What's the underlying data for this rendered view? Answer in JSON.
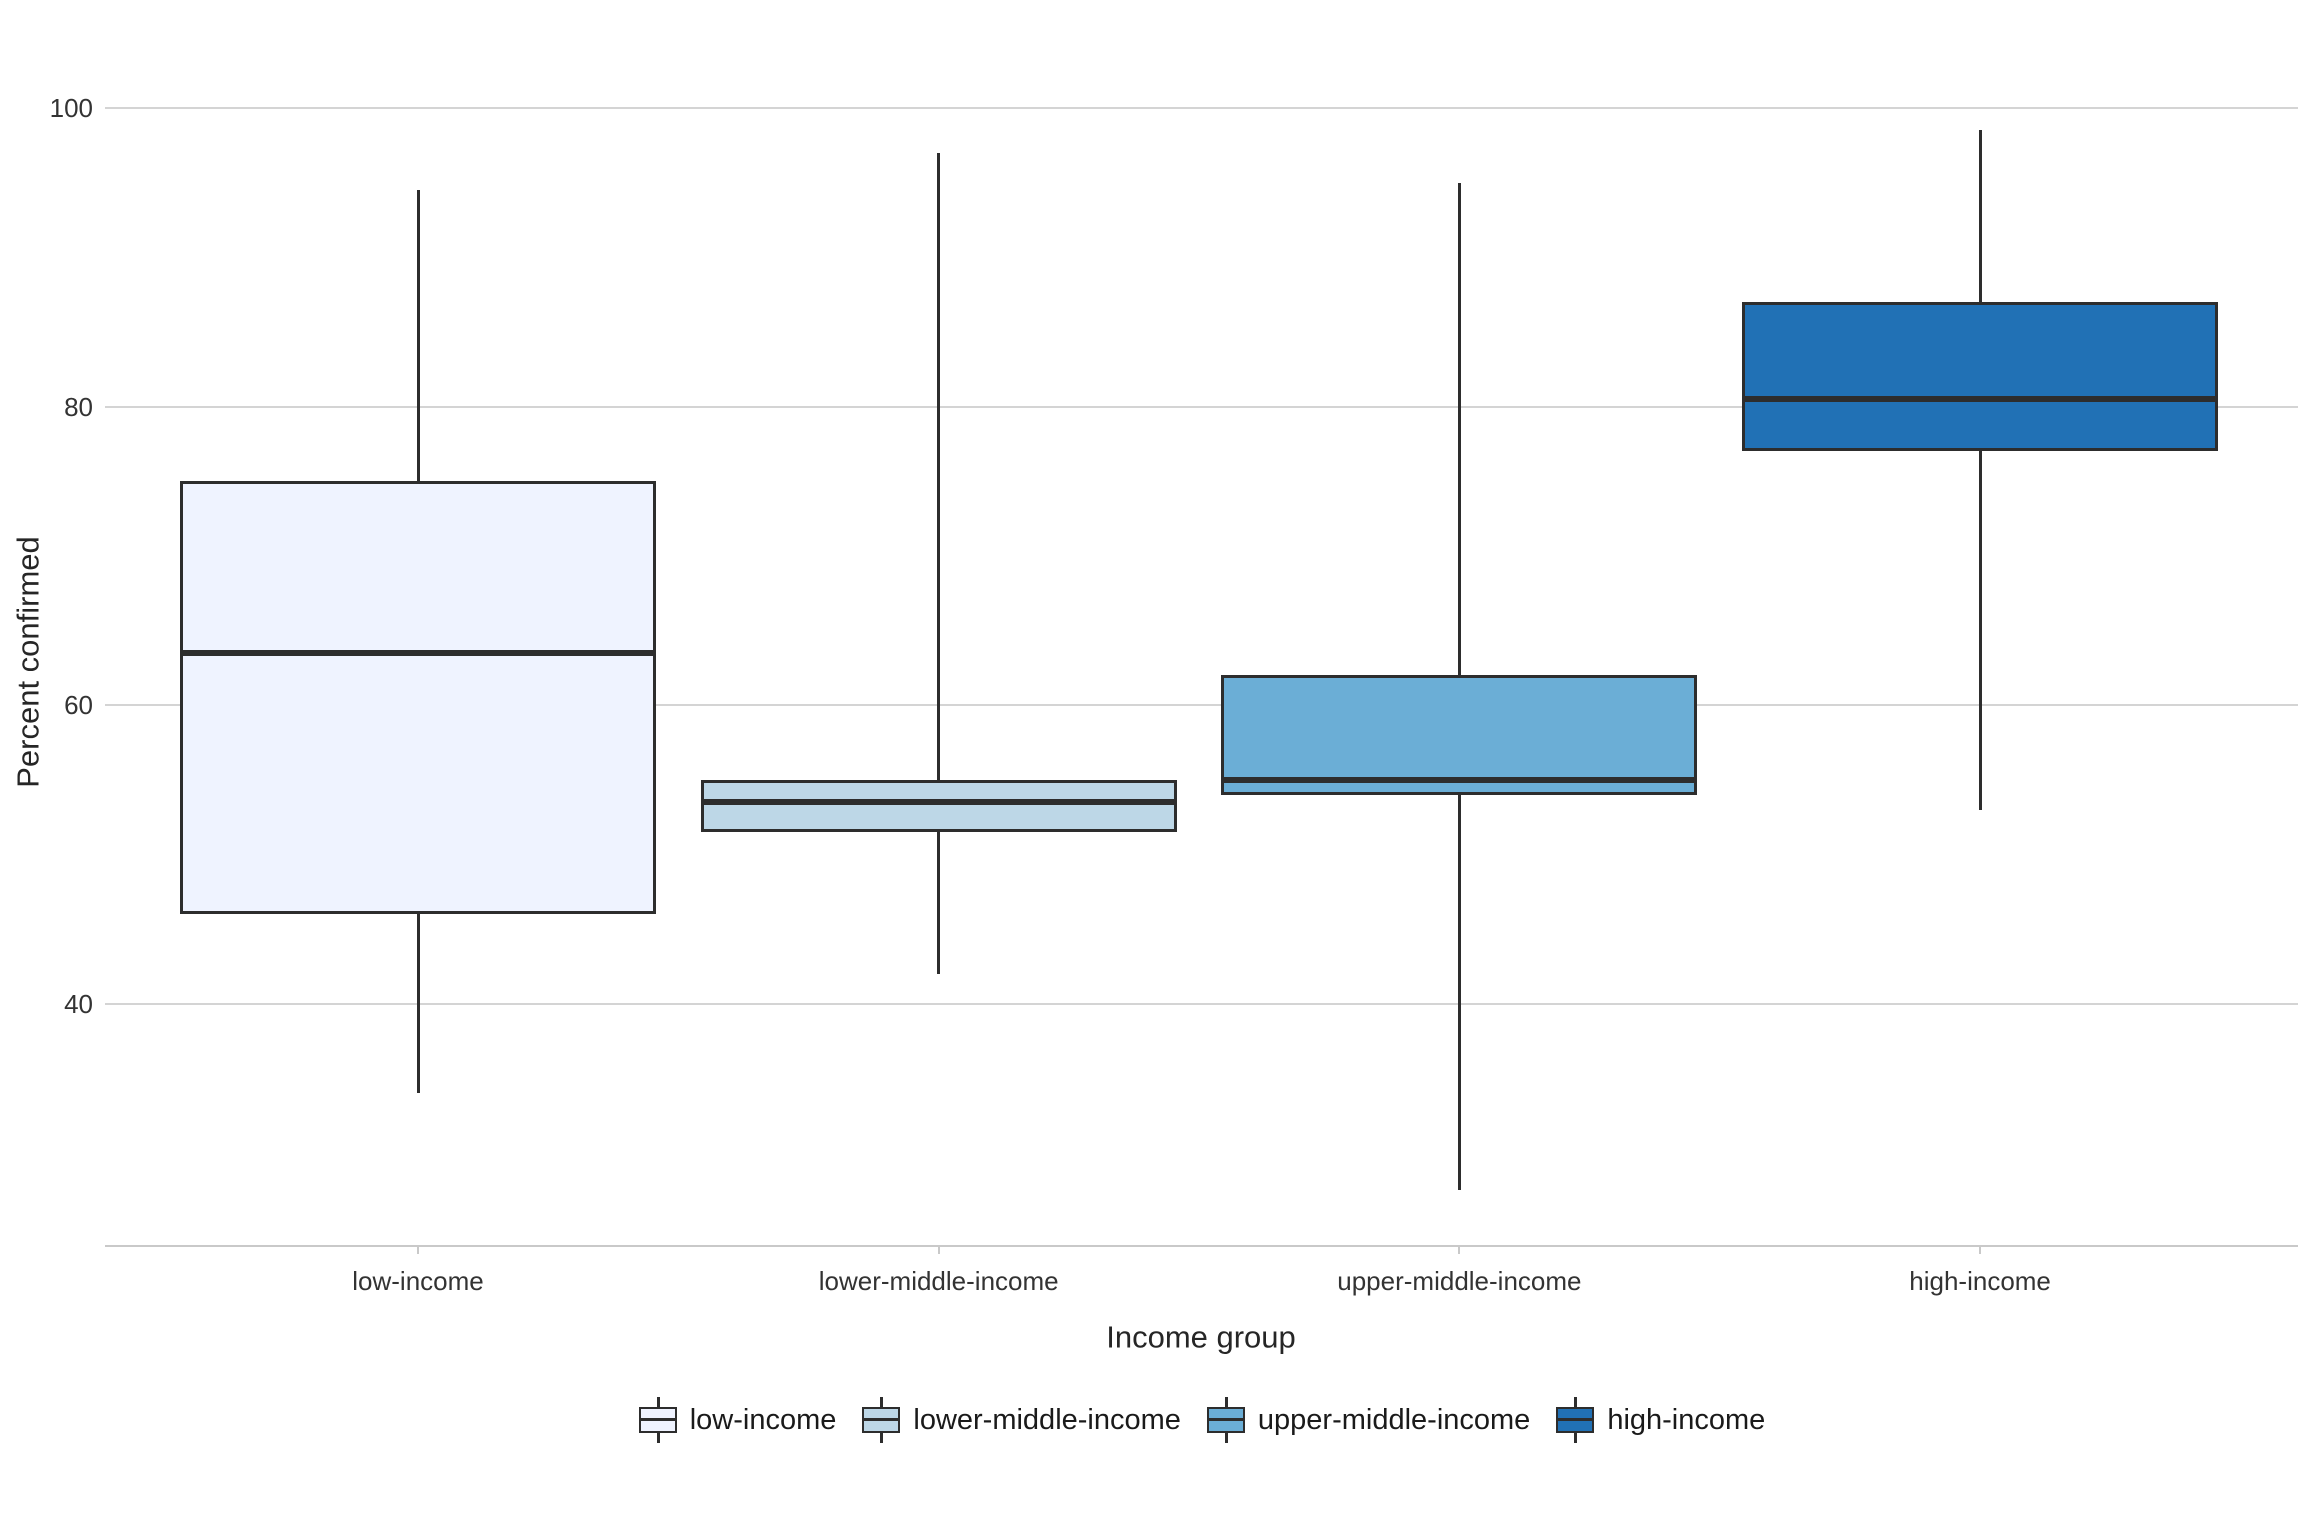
{
  "chart_data": {
    "type": "box",
    "title": "",
    "xlabel": "Income group",
    "ylabel": "Percent confirmed",
    "categories": [
      "low-income",
      "lower-middle-income",
      "upper-middle-income",
      "high-income"
    ],
    "y_ticks": [
      100,
      80,
      60,
      40
    ],
    "ylim": [
      24,
      104
    ],
    "grid": "horizontal-only",
    "legend_position": "bottom-center",
    "series": [
      {
        "name": "low-income",
        "color": "#EFF3FF",
        "whisker_low": 34,
        "q1": 46,
        "median": 63.5,
        "q3": 75,
        "whisker_high": 94.5
      },
      {
        "name": "lower-middle-income",
        "color": "#BDD7E7",
        "whisker_low": 42,
        "q1": 51.5,
        "median": 53.5,
        "q3": 55,
        "whisker_high": 97
      },
      {
        "name": "upper-middle-income",
        "color": "#6BAED6",
        "whisker_low": 27.5,
        "q1": 54,
        "median": 55,
        "q3": 62,
        "whisker_high": 95
      },
      {
        "name": "high-income",
        "color": "#2171B5",
        "whisker_low": 53,
        "q1": 77,
        "median": 80.5,
        "q3": 87,
        "whisker_high": 98.5
      }
    ],
    "colors": {
      "box_border": "#2D2D2D",
      "median_line": "#2D2D2D",
      "whisker": "#2D2D2D",
      "gridline": "#D4D4D4",
      "axis_line": "#C9C9C9",
      "tick_text": "#333333",
      "title_text": "#262626",
      "background": "#FFFFFF"
    }
  }
}
